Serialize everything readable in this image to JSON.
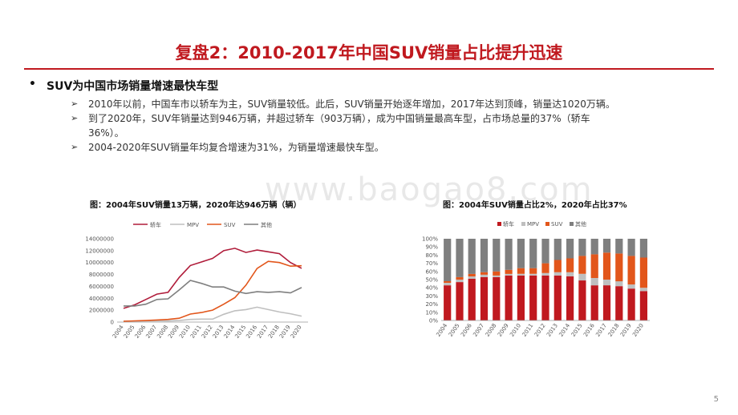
{
  "slide": {
    "title": "复盘2：2010-2017年中国SUV销量占比提升迅速",
    "bullet": "SUV为中国市场销量增速最快车型",
    "bullet_marker": "•",
    "sub_marker": "➢",
    "points": [
      "2010年以前，中国车市以轿车为主，SUV销量较低。此后，SUV销量开始逐年增加，2017年达到顶峰，销量达1020万辆。",
      "到了2020年，SUV年销量达到946万辆，并超过轿车（903万辆），成为中国销量最高车型，占市场总量的37%（轿车",
      "36%）。",
      "2004-2020年SUV销量年均复合增速为31%，为销量增速最快车型。"
    ],
    "watermark": "www.baogao8.com",
    "page_number": "5"
  },
  "chart_data": [
    {
      "type": "line",
      "title": "图：2004年SUV销量13万辆，2020年达946万辆（辆）",
      "x": [
        "2004",
        "2005",
        "2006",
        "2007",
        "2008",
        "2009",
        "2010",
        "2011",
        "2012",
        "2013",
        "2014",
        "2015",
        "2016",
        "2017",
        "2018",
        "2019",
        "2020"
      ],
      "ylim": [
        0,
        14000000
      ],
      "yticks": [
        "0",
        "2000000",
        "4000000",
        "6000000",
        "8000000",
        "10000000",
        "12000000",
        "14000000"
      ],
      "legend_position": "top",
      "series": [
        {
          "name": "轿车",
          "color": "#b01c3a",
          "values": [
            2300000,
            2900000,
            3800000,
            4700000,
            5000000,
            7500000,
            9500000,
            10100000,
            10700000,
            12000000,
            12400000,
            11700000,
            12100000,
            11800000,
            11500000,
            10000000,
            9030000
          ]
        },
        {
          "name": "MPV",
          "color": "#bfbfbf",
          "values": [
            150000,
            160000,
            190000,
            200000,
            190000,
            250000,
            450000,
            500000,
            500000,
            1300000,
            1900000,
            2100000,
            2500000,
            2100000,
            1700000,
            1400000,
            1000000
          ]
        },
        {
          "name": "SUV",
          "color": "#e2561b",
          "values": [
            130000,
            200000,
            250000,
            350000,
            450000,
            650000,
            1350000,
            1600000,
            2000000,
            3000000,
            4100000,
            6200000,
            9000000,
            10200000,
            10000000,
            9400000,
            9460000
          ]
        },
        {
          "name": "其他",
          "color": "#7f7f7f",
          "values": [
            2700000,
            2700000,
            3000000,
            3800000,
            3900000,
            5400000,
            7000000,
            6500000,
            5900000,
            5900000,
            5200000,
            4800000,
            5100000,
            5000000,
            5100000,
            4900000,
            5800000
          ]
        }
      ]
    },
    {
      "type": "bar",
      "stacked": true,
      "title": "图：2004年SUV销量占比2%，2020年占比37%",
      "categories": [
        "2004",
        "2005",
        "2006",
        "2007",
        "2008",
        "2009",
        "2010",
        "2011",
        "2012",
        "2013",
        "2014",
        "2015",
        "2016",
        "2017",
        "2018",
        "2019",
        "2020"
      ],
      "ylim": [
        0,
        100
      ],
      "yticks": [
        "0%",
        "10%",
        "20%",
        "30%",
        "40%",
        "50%",
        "60%",
        "70%",
        "80%",
        "90%",
        "100%"
      ],
      "legend_position": "top",
      "series": [
        {
          "name": "轿车",
          "color": "#c0191f",
          "values": [
            43,
            47,
            51,
            53,
            53,
            55,
            55,
            55,
            55,
            55,
            54,
            49,
            43,
            43,
            42,
            39,
            36
          ]
        },
        {
          "name": "MPV",
          "color": "#bfbfbf",
          "values": [
            3,
            3,
            3,
            3,
            2,
            2,
            2,
            2,
            3,
            4,
            5,
            8,
            9,
            7,
            6,
            5,
            4
          ]
        },
        {
          "name": "SUV",
          "color": "#e2561b",
          "values": [
            2,
            3,
            3,
            3,
            5,
            5,
            7,
            7,
            12,
            15,
            17,
            22,
            29,
            33,
            34,
            35,
            37
          ]
        },
        {
          "name": "其他",
          "color": "#7f7f7f",
          "values": [
            52,
            47,
            43,
            41,
            40,
            38,
            36,
            36,
            30,
            26,
            24,
            21,
            19,
            17,
            18,
            21,
            23
          ]
        }
      ]
    }
  ]
}
